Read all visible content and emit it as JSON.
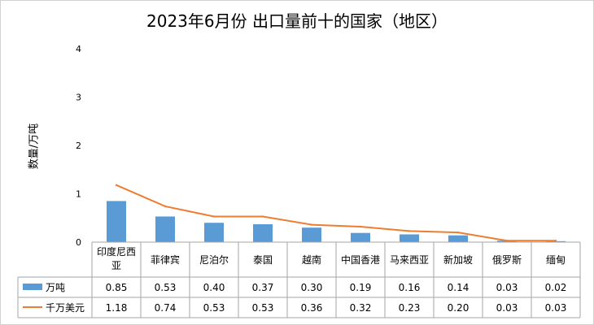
{
  "chart_data": {
    "type": "bar",
    "title": "2023年6月份 出口量前十的国家（地区）",
    "ylabel": "数量/万吨",
    "xlabel": "",
    "ylim": [
      0,
      4
    ],
    "yticks": [
      "0",
      "1",
      "2",
      "3",
      "4"
    ],
    "categories": [
      "印度尼西亚",
      "菲律宾",
      "尼泊尔",
      "泰国",
      "越南",
      "中国香港",
      "马来西亚",
      "新加坡",
      "俄罗斯",
      "缅甸"
    ],
    "series": [
      {
        "name": "万吨",
        "type": "bar",
        "color": "#5b9bd5",
        "values": [
          0.85,
          0.53,
          0.4,
          0.37,
          0.3,
          0.19,
          0.16,
          0.14,
          0.03,
          0.02
        ],
        "labels": [
          "0.85",
          "0.53",
          "0.40",
          "0.37",
          "0.30",
          "0.19",
          "0.16",
          "0.14",
          "0.03",
          "0.02"
        ]
      },
      {
        "name": "千万美元",
        "type": "line",
        "color": "#ed7d31",
        "values": [
          1.18,
          0.74,
          0.53,
          0.53,
          0.36,
          0.32,
          0.23,
          0.2,
          0.03,
          0.03
        ],
        "labels": [
          "1.18",
          "0.74",
          "0.53",
          "0.53",
          "0.36",
          "0.32",
          "0.23",
          "0.20",
          "0.03",
          "0.03"
        ]
      }
    ],
    "grid": false,
    "legend": "data-table"
  }
}
